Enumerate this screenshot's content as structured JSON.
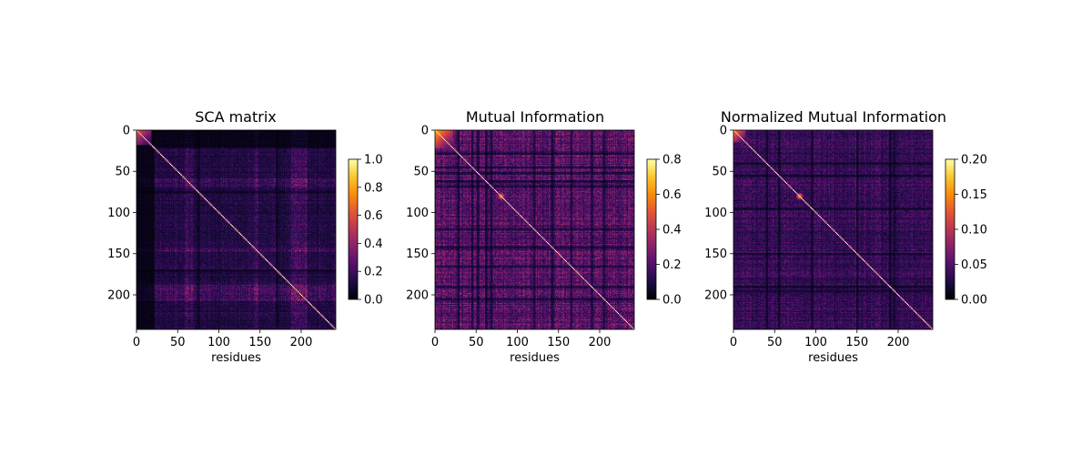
{
  "chart_data": [
    {
      "type": "heatmap",
      "title": "SCA matrix",
      "xlabel": "residues",
      "ylabel": "",
      "n": 242,
      "xlim": [
        0,
        242
      ],
      "ylim": [
        242,
        0
      ],
      "x_ticks": [
        0,
        50,
        100,
        150,
        200
      ],
      "y_ticks": [
        0,
        50,
        100,
        150,
        200
      ],
      "colormap": "inferno",
      "colorbar": {
        "min": 0.0,
        "max": 1.0,
        "ticks": [
          0.0,
          0.2,
          0.4,
          0.6,
          0.8,
          1.0
        ],
        "tick_labels": [
          "0.0",
          "0.2",
          "0.4",
          "0.6",
          "0.8",
          "1.0"
        ]
      },
      "features": {
        "diagonal": 1.0,
        "background_level": 0.12,
        "dark_band_start": 0,
        "dark_band_end": 20,
        "corner_block": {
          "start": 0,
          "end": 18,
          "level": 0.5
        },
        "hot_stripes": [
          60,
          65,
          145,
          190,
          195,
          200,
          205
        ],
        "dark_stripes": [
          20,
          75,
          170
        ]
      }
    },
    {
      "type": "heatmap",
      "title": "Mutual Information",
      "xlabel": "residues",
      "ylabel": "",
      "n": 242,
      "xlim": [
        0,
        242
      ],
      "ylim": [
        242,
        0
      ],
      "x_ticks": [
        0,
        50,
        100,
        150,
        200
      ],
      "y_ticks": [
        0,
        50,
        100,
        150,
        200
      ],
      "colormap": "inferno",
      "colorbar": {
        "min": 0.0,
        "max": 0.8,
        "ticks": [
          0.0,
          0.2,
          0.4,
          0.6,
          0.8
        ],
        "tick_labels": [
          "0.0",
          "0.2",
          "0.4",
          "0.6",
          "0.8"
        ]
      },
      "features": {
        "diagonal": 0.8,
        "background_level": 0.2,
        "corner_block": {
          "start": 0,
          "end": 22,
          "level": 0.55
        },
        "hot_spot": 80,
        "dark_stripes": [
          28,
          45,
          52,
          62,
          68,
          120,
          142,
          165,
          190,
          205
        ]
      }
    },
    {
      "type": "heatmap",
      "title": "Normalized Mutual Information",
      "xlabel": "residues",
      "ylabel": "",
      "n": 242,
      "xlim": [
        0,
        242
      ],
      "ylim": [
        242,
        0
      ],
      "x_ticks": [
        0,
        50,
        100,
        150,
        200
      ],
      "y_ticks": [
        0,
        50,
        100,
        150,
        200
      ],
      "colormap": "inferno",
      "colorbar": {
        "min": 0.0,
        "max": 0.2,
        "ticks": [
          0.0,
          0.05,
          0.1,
          0.15,
          0.2
        ],
        "tick_labels": [
          "0.00",
          "0.05",
          "0.10",
          "0.15",
          "0.20"
        ]
      },
      "features": {
        "diagonal": 0.2,
        "background_level": 0.035,
        "corner_block": {
          "start": 0,
          "end": 15,
          "level": 0.12
        },
        "hot_spot": 80,
        "dark_stripes": [
          40,
          55,
          95,
          150,
          190,
          195
        ]
      }
    }
  ]
}
